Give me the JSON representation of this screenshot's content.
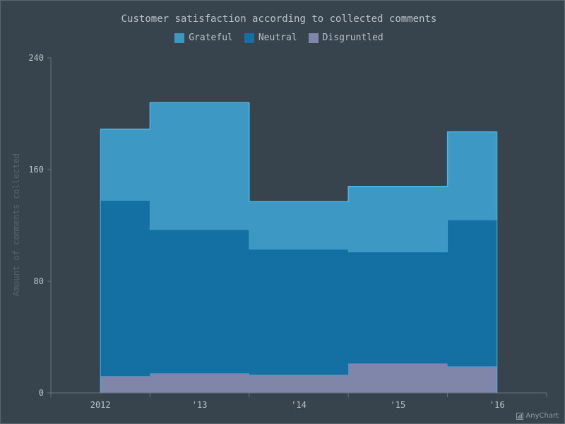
{
  "chart_data": {
    "type": "area",
    "step": true,
    "stacked": true,
    "title": "Customer satisfaction according to collected comments",
    "ylabel": "Amount of comments collected",
    "xlabel": "",
    "categories": [
      "2012",
      "'13",
      "'14",
      "'15",
      "'16"
    ],
    "ylim": [
      0,
      240
    ],
    "yticks": [
      "0",
      "80",
      "160",
      "240"
    ],
    "legend_position": "top",
    "series": [
      {
        "name": "Disgruntled",
        "values": [
          12,
          14,
          13,
          21,
          19
        ],
        "color": "#7f86aa"
      },
      {
        "name": "Neutral",
        "values": [
          126,
          103,
          90,
          80,
          105
        ],
        "color": "#1470a3"
      },
      {
        "name": "Grateful",
        "values": [
          51,
          91,
          34,
          47,
          63
        ],
        "color": "#3d98c4"
      }
    ]
  },
  "credits": {
    "label": "AnyChart"
  },
  "colors": {
    "background": "#38444d",
    "axis": "#67737c",
    "label": "#b9c2c9",
    "stroke": "#4fb4e6"
  }
}
